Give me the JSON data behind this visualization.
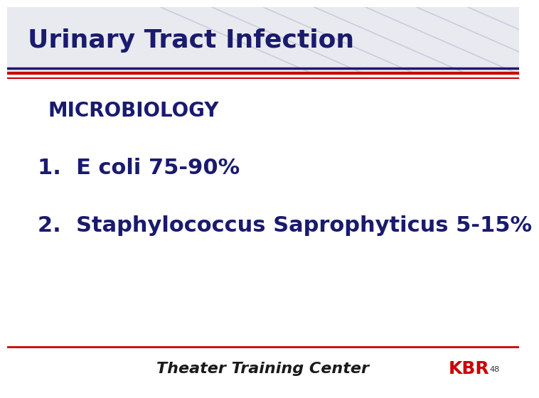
{
  "title": "Urinary Tract Infection",
  "title_color": "#1a1a6e",
  "title_fontsize": 26,
  "subtitle": "MICROBIOLOGY",
  "subtitle_color": "#1a1a6e",
  "subtitle_fontsize": 20,
  "items": [
    "1.  E coli 75-90%",
    "2.  Staphylococcus Saprophyticus 5-15%"
  ],
  "item_color": "#1a1a6e",
  "item_fontsize": 22,
  "footer_text": "Theater Training Center",
  "footer_color": "#1a1a1a",
  "footer_fontsize": 16,
  "kbr_text": "KBR",
  "kbr_color": "#cc0000",
  "kbr_fontsize": 18,
  "page_number": "48",
  "bg_color": "#ffffff",
  "top_red_line_color": "#cc0000",
  "top_dark_line_color": "#1a1a6e",
  "bottom_red_line_color": "#cc0000",
  "header_bg_color": "#e8eaf0",
  "diagonal_line_color": "#ccccdd"
}
